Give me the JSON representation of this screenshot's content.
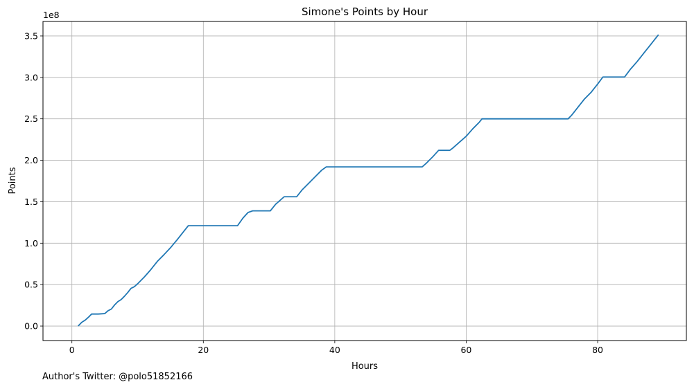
{
  "chart_data": {
    "type": "line",
    "title": "Simone's Points by Hour",
    "xlabel": "Hours",
    "ylabel": "Points",
    "y_multiplier_label": "1e8",
    "xlim": [
      -4.4,
      93.5
    ],
    "ylim": [
      -0.175,
      3.675
    ],
    "xticks": [
      0,
      20,
      40,
      60,
      80
    ],
    "xtick_labels": [
      "0",
      "20",
      "40",
      "60",
      "80"
    ],
    "yticks": [
      0.0,
      0.5,
      1.0,
      1.5,
      2.0,
      2.5,
      3.0,
      3.5
    ],
    "ytick_labels": [
      "0.0",
      "0.5",
      "1.0",
      "1.5",
      "2.0",
      "2.5",
      "3.0",
      "3.5"
    ],
    "grid": true,
    "series": [
      {
        "color": "#1f77b4",
        "x": [
          1.0,
          1.5,
          2.0,
          2.5,
          3.0,
          4.0,
          5.0,
          5.5,
          6.0,
          6.5,
          7.0,
          7.5,
          8.0,
          8.5,
          9.0,
          9.5,
          10.0,
          11.0,
          12.0,
          13.0,
          14.0,
          15.0,
          16.0,
          17.0,
          17.7,
          18.5,
          20.0,
          22.0,
          24.0,
          25.2,
          26.0,
          26.8,
          27.5,
          28.5,
          30.2,
          31.0,
          32.3,
          33.0,
          34.2,
          35.0,
          36.0,
          37.0,
          38.0,
          38.7,
          40.0,
          45.0,
          50.0,
          53.3,
          54.0,
          55.0,
          55.8,
          56.5,
          57.5,
          58.0,
          59.0,
          60.0,
          61.0,
          62.0,
          62.4,
          64.0,
          68.0,
          72.0,
          75.5,
          76.0,
          77.0,
          78.0,
          79.0,
          80.0,
          80.8,
          82.0,
          83.0,
          84.1,
          85.0,
          86.0,
          87.0,
          88.0,
          89.2
        ],
        "values": [
          0.005,
          0.045,
          0.07,
          0.105,
          0.145,
          0.145,
          0.15,
          0.185,
          0.205,
          0.255,
          0.295,
          0.32,
          0.36,
          0.405,
          0.455,
          0.475,
          0.51,
          0.59,
          0.68,
          0.78,
          0.86,
          0.945,
          1.04,
          1.14,
          1.21,
          1.21,
          1.21,
          1.21,
          1.21,
          1.21,
          1.3,
          1.37,
          1.39,
          1.39,
          1.39,
          1.47,
          1.56,
          1.56,
          1.56,
          1.64,
          1.72,
          1.8,
          1.88,
          1.92,
          1.92,
          1.92,
          1.92,
          1.92,
          1.97,
          2.05,
          2.12,
          2.12,
          2.12,
          2.15,
          2.22,
          2.29,
          2.38,
          2.46,
          2.5,
          2.5,
          2.5,
          2.5,
          2.5,
          2.54,
          2.64,
          2.74,
          2.82,
          2.92,
          3.005,
          3.005,
          3.005,
          3.005,
          3.1,
          3.19,
          3.29,
          3.39,
          3.51
        ]
      }
    ]
  },
  "footer": {
    "text": "Author's Twitter: @polo51852166"
  }
}
